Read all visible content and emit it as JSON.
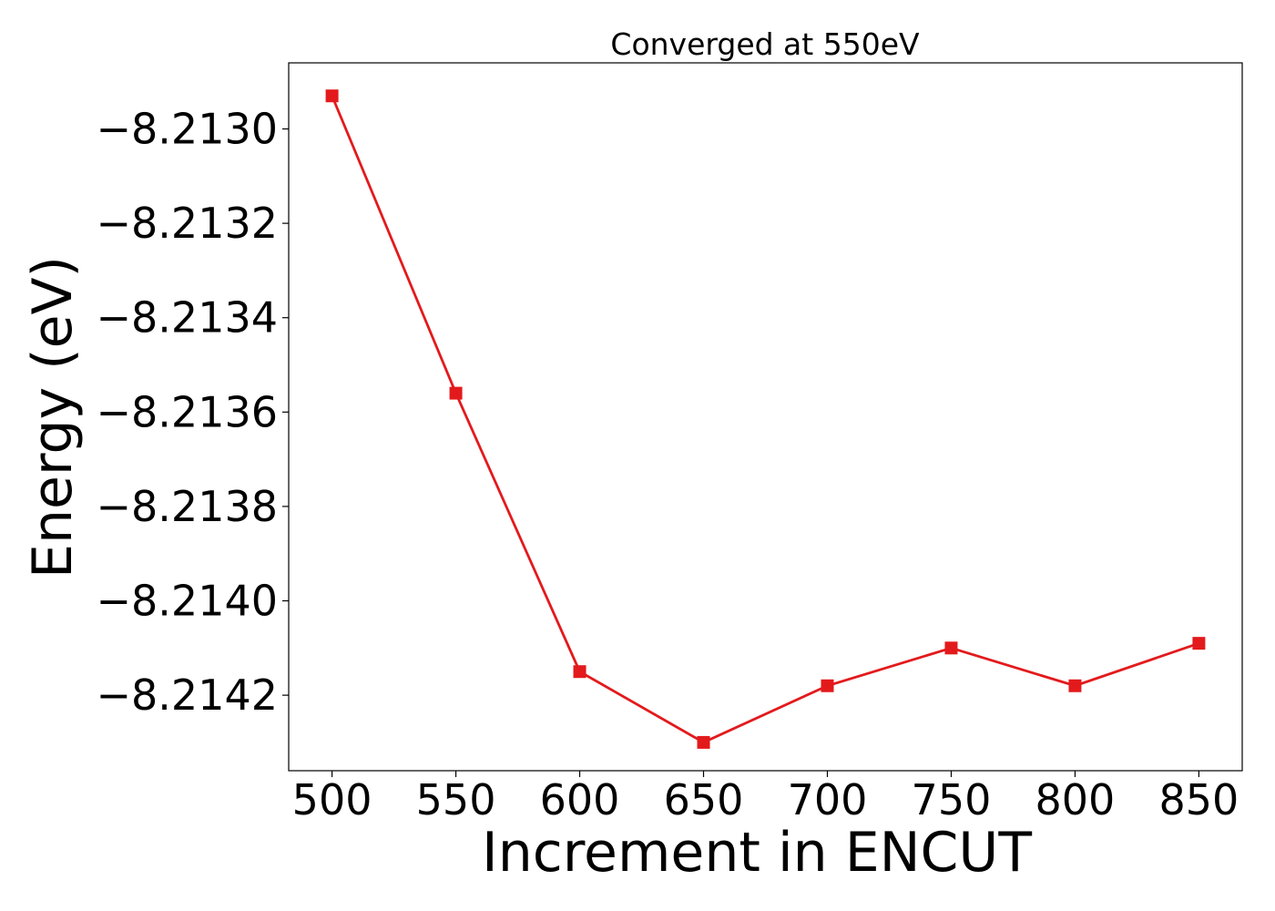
{
  "chart_data": {
    "type": "line",
    "title": "Converged at 550eV",
    "xlabel": "Increment in ENCUT",
    "ylabel": "Energy (eV)",
    "x": [
      500,
      550,
      600,
      650,
      700,
      750,
      800,
      850
    ],
    "series": [
      {
        "values": [
          -8.21293,
          -8.21356,
          -8.21415,
          -8.2143,
          -8.21418,
          -8.2141,
          -8.21418,
          -8.21409
        ],
        "color": "#e31a1c",
        "marker": "square"
      }
    ],
    "xticks": [
      500,
      550,
      600,
      650,
      700,
      750,
      800,
      850
    ],
    "xtick_labels": [
      "500",
      "550",
      "600",
      "650",
      "700",
      "750",
      "800",
      "850"
    ],
    "yticks": [
      -8.213,
      -8.2132,
      -8.2134,
      -8.2136,
      -8.2138,
      -8.214,
      -8.2142
    ],
    "ytick_labels": [
      "−8.2130",
      "−8.2132",
      "−8.2134",
      "−8.2136",
      "−8.2138",
      "−8.2140",
      "−8.2142"
    ],
    "xlim": [
      482.5,
      867.5
    ],
    "ylim": [
      -8.21436,
      -8.21286
    ],
    "grid": false,
    "legend": false
  }
}
